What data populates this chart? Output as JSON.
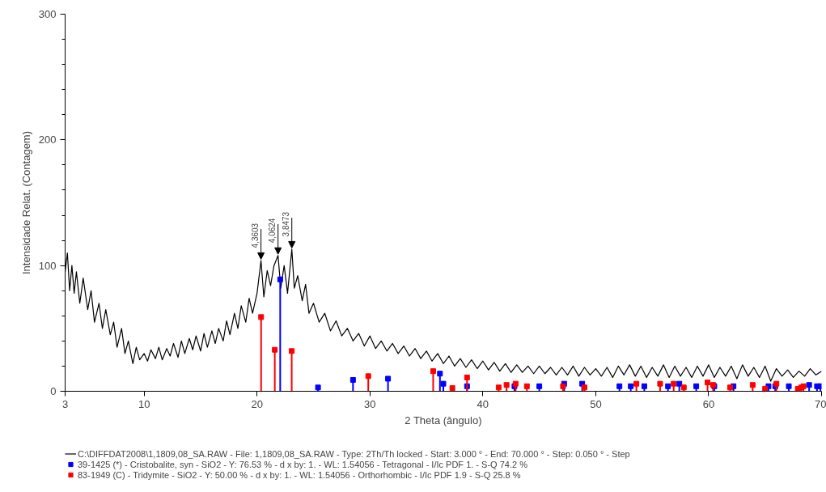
{
  "chart_data": {
    "type": "line",
    "xlabel": "2 Theta (ângulo)",
    "ylabel": "Intensidade Relat. (Contagem)",
    "xlim": [
      3,
      70
    ],
    "ylim": [
      0,
      300
    ],
    "xticks": [
      3,
      10,
      20,
      30,
      40,
      50,
      60,
      70
    ],
    "yticks": [
      0,
      {
        "value": 20,
        "label": null
      },
      {
        "value": 40,
        "label": null
      },
      {
        "value": 60,
        "label": null
      },
      {
        "value": 80,
        "label": null
      },
      100,
      {
        "value": 120,
        "label": null
      },
      {
        "value": 140,
        "label": null
      },
      {
        "value": 160,
        "label": null
      },
      {
        "value": 180,
        "label": null
      },
      200,
      {
        "value": 220,
        "label": null
      },
      {
        "value": 240,
        "label": null
      },
      {
        "value": 260,
        "label": null
      },
      {
        "value": 280,
        "label": null
      },
      300
    ],
    "grid": false,
    "legend": "bottom",
    "series": [
      {
        "name": "C:\\DIFFDAT2008\\1,1809,08_SA.RAW - File: 1,1809,08_SA.RAW - Type: 2Th/Th locked - Start: 3.000 ° - End: 70.000 ° - Step: 0.050 ° - Step",
        "color": "#000000",
        "marker": "none",
        "x": [
          3,
          3.2,
          3.4,
          3.6,
          3.8,
          4,
          4.3,
          4.6,
          5,
          5.3,
          5.6,
          6,
          6.3,
          6.6,
          7,
          7.3,
          7.6,
          8,
          8.3,
          8.6,
          9,
          9.3,
          9.6,
          10,
          10.3,
          10.6,
          11,
          11.3,
          11.6,
          12,
          12.3,
          12.6,
          13,
          13.3,
          13.6,
          14,
          14.3,
          14.6,
          15,
          15.3,
          15.6,
          16,
          16.3,
          16.6,
          17,
          17.3,
          17.6,
          18,
          18.3,
          18.6,
          19,
          19.3,
          19.6,
          20,
          20.35,
          20.6,
          20.9,
          21.2,
          21.5,
          21.86,
          22.1,
          22.4,
          22.7,
          23.08,
          23.3,
          23.6,
          24,
          24.3,
          24.6,
          25,
          25.5,
          26,
          26.5,
          27,
          27.5,
          28,
          28.5,
          29,
          29.5,
          30,
          30.5,
          31,
          31.5,
          32,
          32.5,
          33,
          33.5,
          34,
          34.5,
          35,
          35.5,
          36,
          36.5,
          37,
          37.5,
          38,
          38.5,
          39,
          39.5,
          40,
          40.5,
          41,
          41.5,
          42,
          42.5,
          43,
          43.5,
          44,
          44.5,
          45,
          45.5,
          46,
          46.5,
          47,
          47.5,
          48,
          48.5,
          49,
          49.5,
          50,
          50.5,
          51,
          51.5,
          52,
          52.5,
          53,
          53.5,
          54,
          54.5,
          55,
          55.5,
          56,
          56.5,
          57,
          57.5,
          58,
          58.5,
          59,
          59.5,
          60,
          60.5,
          61,
          61.5,
          62,
          62.5,
          63,
          63.5,
          64,
          64.5,
          65,
          65.5,
          66,
          66.5,
          67,
          67.5,
          68,
          68.5,
          69,
          69.5,
          70
        ],
        "values": [
          95,
          110,
          80,
          100,
          78,
          95,
          70,
          90,
          65,
          80,
          55,
          70,
          50,
          65,
          45,
          55,
          35,
          50,
          30,
          40,
          22,
          35,
          25,
          30,
          24,
          33,
          26,
          35,
          25,
          34,
          28,
          38,
          27,
          40,
          30,
          42,
          33,
          44,
          32,
          46,
          35,
          48,
          38,
          50,
          40,
          56,
          45,
          62,
          50,
          68,
          55,
          74,
          62,
          78,
          104,
          75,
          96,
          84,
          100,
          108,
          82,
          100,
          78,
          113,
          82,
          92,
          72,
          85,
          62,
          70,
          55,
          62,
          48,
          56,
          44,
          50,
          40,
          46,
          36,
          44,
          34,
          40,
          32,
          38,
          30,
          36,
          28,
          34,
          26,
          32,
          24,
          30,
          22,
          28,
          20,
          26,
          19,
          25,
          18,
          24,
          17,
          23,
          16,
          22,
          15,
          21,
          15,
          20,
          14,
          20,
          14,
          19,
          13,
          19,
          13,
          20,
          12,
          19,
          13,
          18,
          12,
          19,
          11,
          20,
          13,
          21,
          12,
          20,
          11,
          19,
          12,
          21,
          11,
          20,
          12,
          19,
          11,
          20,
          12,
          21,
          11,
          19,
          12,
          20,
          10,
          21,
          12,
          19,
          11,
          20,
          8,
          18,
          12,
          17,
          11,
          16,
          12,
          18,
          13,
          16
        ]
      },
      {
        "name": "39-1425 (*) - Cristobalite, syn - SiO2 - Y: 76.53 % - d x by: 1. - WL: 1.54056 - Tetragonal - I/Ic PDF 1. - S-Q 74.2 %",
        "color": "#0000ff",
        "type": "lollipop",
        "marker": "square",
        "x": [
          22.05,
          25.4,
          28.5,
          31.6,
          36.2,
          36.5,
          38.6,
          42.8,
          45.0,
          47.2,
          48.8,
          52.1,
          53.1,
          54.3,
          56.4,
          57.4,
          58.9,
          60.5,
          62.2,
          65.3,
          65.9,
          67.1,
          68.9,
          69.6,
          69.9
        ],
        "values": [
          89,
          3,
          9,
          10,
          14,
          6,
          4,
          4,
          4,
          6,
          6,
          4,
          4,
          4,
          4,
          6,
          4,
          4,
          4,
          4,
          4,
          4,
          5,
          4,
          4
        ]
      },
      {
        "name": "83-1949 (C) - Tridymite - SiO2 - Y: 50.00 % - d x by: 1. - WL: 1.54056 - Orthorhombic - I/Ic PDF 1.9 - S-Q 25.8 %",
        "color": "#ff0000",
        "type": "lollipop",
        "marker": "square",
        "x": [
          20.36,
          21.57,
          23.07,
          29.85,
          35.6,
          37.3,
          38.6,
          41.4,
          42.1,
          42.9,
          43.9,
          47.1,
          49.0,
          53.6,
          55.7,
          56.9,
          57.8,
          59.9,
          60.4,
          61.9,
          63.9,
          65.0,
          66.0,
          67.9,
          68.2,
          68.4
        ],
        "values": [
          59,
          33,
          32,
          12,
          16,
          2.5,
          11,
          3,
          5,
          6,
          4,
          4,
          3,
          6,
          6,
          6,
          3,
          7,
          5,
          3,
          5,
          2,
          6,
          2,
          3,
          4
        ]
      }
    ],
    "annotations": [
      {
        "text": "4,3603",
        "x": 20.35,
        "y": 104
      },
      {
        "text": "4,0624",
        "x": 21.86,
        "y": 108
      },
      {
        "text": "3,8473",
        "x": 23.08,
        "y": 113
      }
    ]
  }
}
